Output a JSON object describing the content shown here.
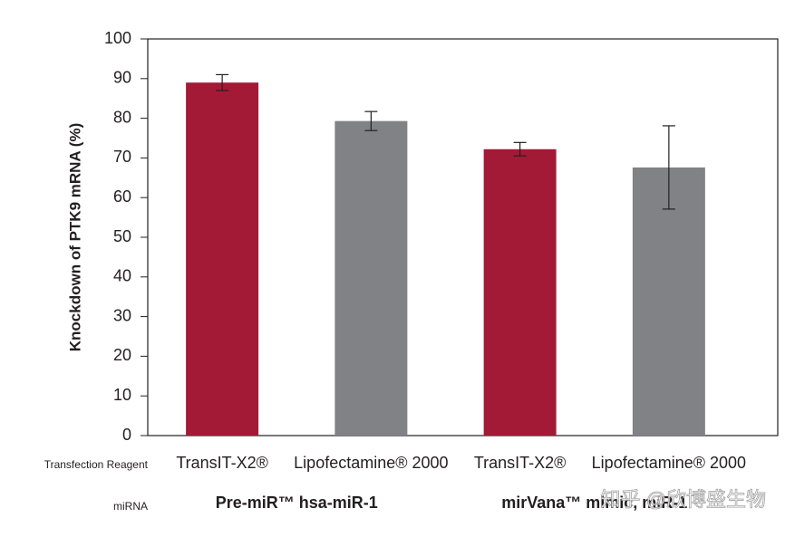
{
  "chart_data": {
    "type": "bar",
    "y_label": "Knockdown of PTK9 mRNA (%)",
    "categories": [
      "TransIT-X2®",
      "Lipofectamine® 2000",
      "TransIT-X2®",
      "Lipofectamine® 2000"
    ],
    "values": [
      89,
      79.3,
      72.2,
      67.6
    ],
    "errors": [
      2,
      2.4,
      1.7,
      10.5
    ],
    "colors": [
      "#a31a36",
      "#808285",
      "#a31a36",
      "#808285"
    ],
    "row_labels": [
      "Transfection Reagent",
      "miRNA"
    ],
    "groups": [
      "Pre-miR™ hsa-miR-1",
      "mirVana™ mimic, miR-1"
    ],
    "watermark": "知乎 @欣博盛生物",
    "ylim": [
      0,
      100
    ],
    "yticks": [
      0,
      10,
      20,
      30,
      40,
      50,
      60,
      70,
      80,
      90,
      100
    ]
  }
}
